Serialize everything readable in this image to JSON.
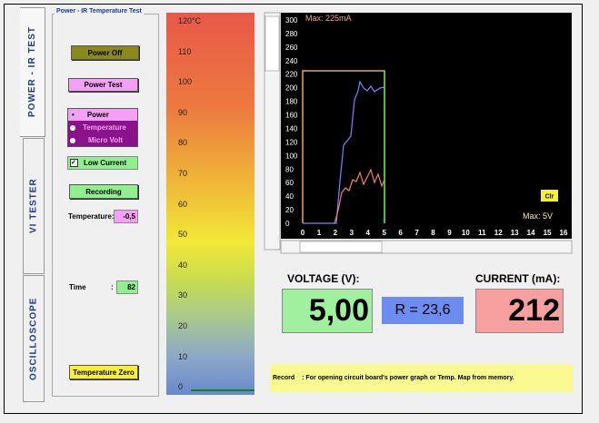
{
  "tabs": [
    "POWER - IR TEST",
    "VI TESTER",
    "OSCILLOSCOPE"
  ],
  "panel": {
    "title": "Power - IR Temperature Test",
    "power_off": "Power Off",
    "power_test": "Power Test",
    "modes": [
      "Power",
      "Temperature",
      "Micro Volt"
    ],
    "low_current": "Low Current",
    "recording": "Recording",
    "temperature_label": "Temperature:",
    "temperature_value": "-0,5",
    "time_label": "Time",
    "time_sep": ":",
    "time_value": "82",
    "temperature_zero": "Temperature Zero"
  },
  "scale": {
    "labels": [
      "120°C",
      "110",
      "100",
      "90",
      "80",
      "70",
      "60",
      "50",
      "40",
      "30",
      "20",
      "10",
      "0"
    ]
  },
  "graph": {
    "max_current": "Max: 225mA",
    "max_voltage": "Max: 5V",
    "clear": "Clr",
    "y_labels": [
      300,
      280,
      260,
      240,
      220,
      200,
      180,
      160,
      140,
      120,
      100,
      80,
      60,
      40,
      20,
      0
    ],
    "x_labels": [
      0,
      1,
      2,
      3,
      4,
      5,
      6,
      7,
      8,
      9,
      10,
      11,
      12,
      13,
      14,
      15,
      16
    ]
  },
  "readout": {
    "voltage_label": "VOLTAGE (V):",
    "current_label": "CURRENT (mA):",
    "voltage": "5,00",
    "resistance": "R = 23,6",
    "current": "212"
  },
  "status": {
    "record": "Record",
    "message": ": For opening circuit board's power graph or Temp. Map from memory."
  }
}
